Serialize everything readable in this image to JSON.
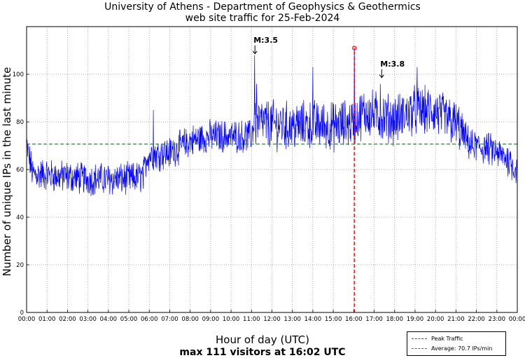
{
  "chart_data": {
    "type": "line",
    "title": "University of Athens - Department of Geophysics & Geothermics",
    "subtitle": "web site traffic for 25-Feb-2024",
    "xlabel": "Hour of day (UTC)",
    "ylabel": "Number of unique IPs in the last minute",
    "summary": "max 111 visitors at 16:02 UTC",
    "xlim": [
      0,
      24
    ],
    "ylim": [
      0,
      120
    ],
    "x_ticks": [
      "00:00",
      "01:00",
      "02:00",
      "03:00",
      "04:00",
      "05:00",
      "06:00",
      "07:00",
      "08:00",
      "09:00",
      "10:00",
      "11:00",
      "12:00",
      "13:00",
      "14:00",
      "15:00",
      "16:00",
      "17:00",
      "18:00",
      "19:00",
      "20:00",
      "21:00",
      "22:00",
      "23:00",
      "00:00"
    ],
    "y_ticks": [
      0,
      20,
      40,
      60,
      80,
      100
    ],
    "grid": true,
    "series": [
      {
        "name": "Traffic",
        "color": "#0000ff",
        "hour_means": [
          {
            "x": 0.0,
            "y": 70
          },
          {
            "x": 0.3,
            "y": 58
          },
          {
            "x": 1.0,
            "y": 58
          },
          {
            "x": 1.5,
            "y": 57
          },
          {
            "x": 2.0,
            "y": 57
          },
          {
            "x": 3.0,
            "y": 56
          },
          {
            "x": 4.0,
            "y": 56
          },
          {
            "x": 5.0,
            "y": 56
          },
          {
            "x": 5.7,
            "y": 57
          },
          {
            "x": 5.9,
            "y": 66
          },
          {
            "x": 7.0,
            "y": 67
          },
          {
            "x": 8.0,
            "y": 72
          },
          {
            "x": 9.0,
            "y": 74
          },
          {
            "x": 10.0,
            "y": 74
          },
          {
            "x": 11.0,
            "y": 74
          },
          {
            "x": 11.1,
            "y": 80
          },
          {
            "x": 12.0,
            "y": 79
          },
          {
            "x": 13.0,
            "y": 78
          },
          {
            "x": 14.0,
            "y": 79
          },
          {
            "x": 15.0,
            "y": 78
          },
          {
            "x": 16.0,
            "y": 80
          },
          {
            "x": 16.5,
            "y": 84
          },
          {
            "x": 17.0,
            "y": 83
          },
          {
            "x": 18.0,
            "y": 81
          },
          {
            "x": 19.0,
            "y": 85
          },
          {
            "x": 20.0,
            "y": 84
          },
          {
            "x": 21.0,
            "y": 79
          },
          {
            "x": 21.7,
            "y": 70
          },
          {
            "x": 22.5,
            "y": 69
          },
          {
            "x": 23.0,
            "y": 67
          },
          {
            "x": 23.6,
            "y": 64
          },
          {
            "x": 24.0,
            "y": 59
          }
        ],
        "spikes": [
          {
            "x": 11.15,
            "y": 108
          },
          {
            "x": 11.25,
            "y": 96
          },
          {
            "x": 14.0,
            "y": 103
          },
          {
            "x": 16.03,
            "y": 111
          },
          {
            "x": 17.3,
            "y": 96
          },
          {
            "x": 19.1,
            "y": 103
          },
          {
            "x": 6.2,
            "y": 85
          }
        ]
      }
    ],
    "peak": {
      "time": 16.03,
      "value": 111,
      "color": "#ff0000"
    },
    "average": {
      "value": 70.7,
      "color": "#00aa00"
    },
    "annotations": [
      {
        "label": "M:3.5",
        "x": 11.1,
        "y": 108
      },
      {
        "label": "M:3.8",
        "x": 17.3,
        "y": 98
      }
    ],
    "legend": {
      "position": "bottom-right",
      "entries": [
        {
          "label": "Peak Traffic",
          "color": "#ff0000"
        },
        {
          "label": "Average: 70.7 IPs/min",
          "color": "#00aa00"
        }
      ]
    }
  }
}
